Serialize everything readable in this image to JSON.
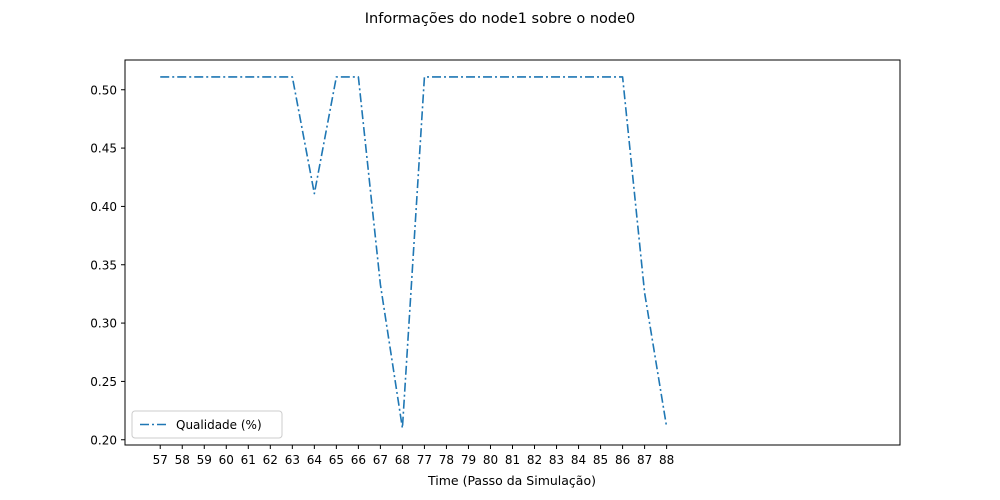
{
  "chart_data": {
    "type": "line",
    "title": "Informações do node1 sobre o node0",
    "xlabel": "Time (Passo da Simulação)",
    "ylabel": "",
    "x": [
      57,
      58,
      59,
      60,
      61,
      62,
      63,
      64,
      65,
      66,
      67,
      68,
      77,
      78,
      79,
      80,
      81,
      82,
      83,
      84,
      85,
      86,
      87,
      88
    ],
    "xlim": [
      -1.6,
      33.6
    ],
    "ylim": [
      0.1955,
      0.5255
    ],
    "yticks": [
      0.2,
      0.25,
      0.3,
      0.35,
      0.4,
      0.45,
      0.5
    ],
    "series": [
      {
        "name": "Qualidade (%)",
        "color": "#1f77b4",
        "linestyle": "dashdot",
        "values": [
          0.511,
          0.511,
          0.511,
          0.511,
          0.511,
          0.511,
          0.511,
          0.411,
          0.511,
          0.511,
          0.333,
          0.21,
          0.511,
          0.511,
          0.511,
          0.511,
          0.511,
          0.511,
          0.511,
          0.511,
          0.511,
          0.511,
          0.326,
          0.211
        ]
      }
    ],
    "legend": "lower-left",
    "grid": false
  }
}
